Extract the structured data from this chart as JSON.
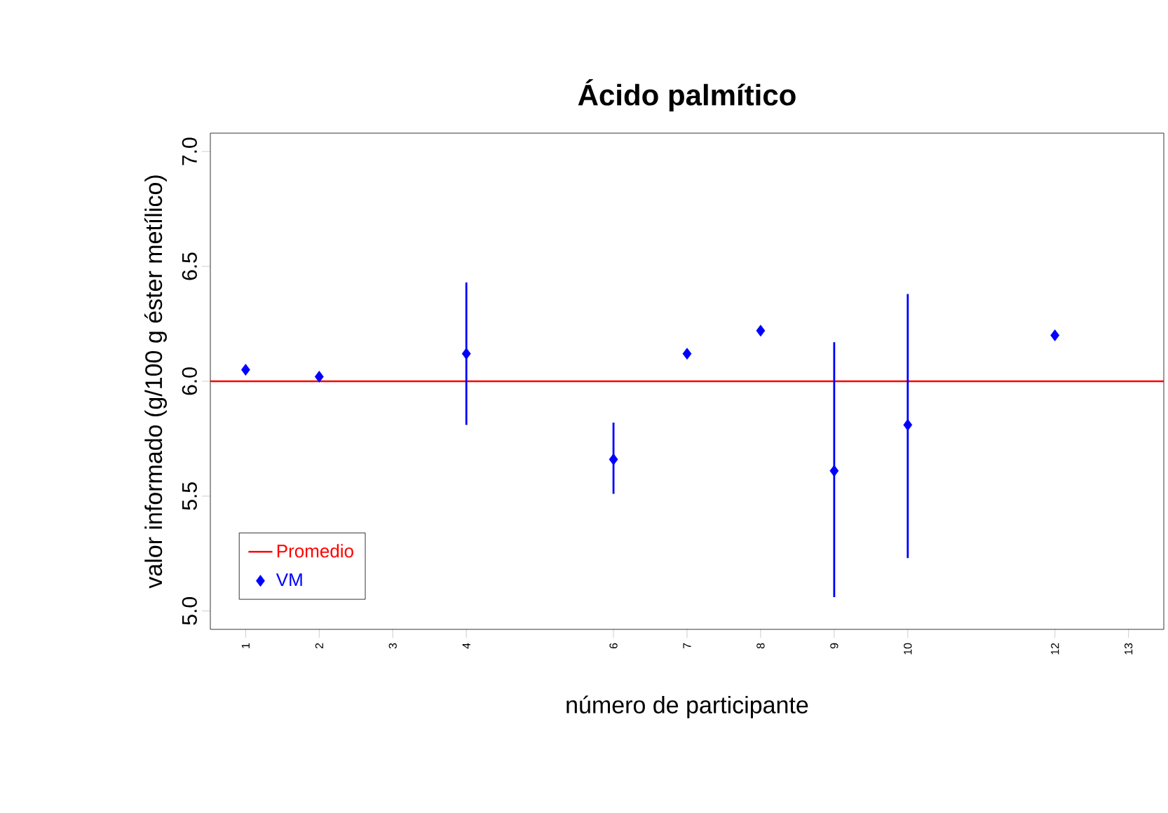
{
  "chart_data": {
    "type": "scatter",
    "title": "**Ácido palmítico**",
    "xlabel": "número de participante",
    "ylabel": "valor informado (g/100 g éster metílico)",
    "xlim": [
      0.52,
      13.48
    ],
    "ylim": [
      4.92,
      7.08
    ],
    "xticks": [
      1,
      2,
      3,
      4,
      6,
      7,
      8,
      9,
      10,
      12,
      13
    ],
    "yticks": [
      {
        "value": 5,
        "label": "5.0"
      },
      {
        "value": 5.5,
        "label": "5.5"
      },
      {
        "value": 6,
        "label": "6.0"
      },
      {
        "value": 6.5,
        "label": "6.5"
      },
      {
        "value": 7,
        "label": "7.0"
      }
    ],
    "series": [
      {
        "name": "VM",
        "color": "#0000ff",
        "x": [
          1,
          2,
          4,
          6,
          7,
          8,
          9,
          10,
          12
        ],
        "values": [
          6.05,
          6.02,
          6.12,
          5.66,
          6.12,
          6.22,
          5.61,
          5.81,
          6.2
        ],
        "errors": [
          null,
          null,
          [
            5.81,
            6.43
          ],
          [
            5.51,
            5.82
          ],
          null,
          null,
          [
            5.06,
            6.17
          ],
          [
            5.23,
            6.38
          ],
          null
        ]
      }
    ],
    "ref_lines": [
      {
        "axis": "y",
        "value": 6.0,
        "label": "Promedio",
        "color": "#ff0000"
      }
    ],
    "marker": "diamond",
    "legend": "bottom left",
    "grid": false
  }
}
